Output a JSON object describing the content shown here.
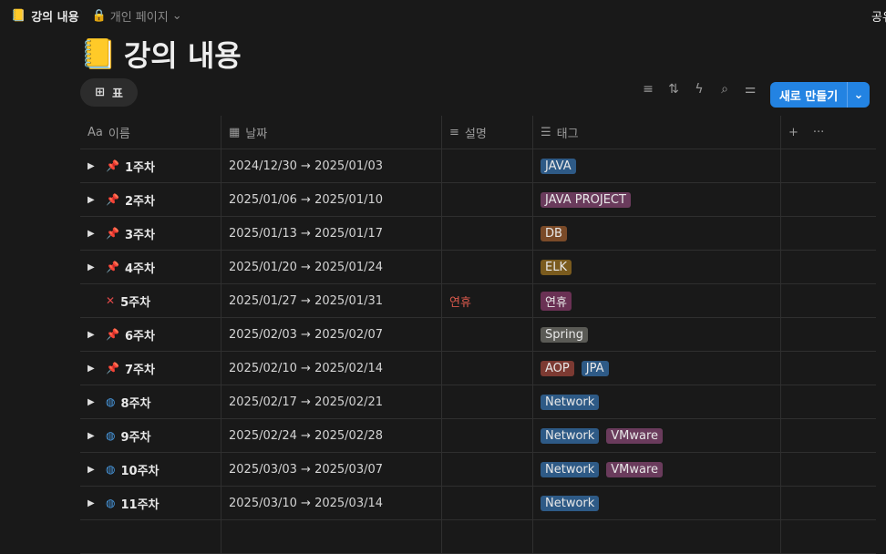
{
  "topbar": {
    "page_title": "강의 내용",
    "privacy": "개인 페이지",
    "share": "공유"
  },
  "page": {
    "title": "강의 내용",
    "emoji": "📒"
  },
  "view": {
    "tab": "표"
  },
  "toolbar": {
    "new_label": "새로 만들기"
  },
  "columns": [
    "이름",
    "날짜",
    "설명",
    "태그"
  ],
  "tag_colors": {
    "JAVA": "#2e5a86",
    "JAVA PROJECT": "#6a3b5c",
    "DB": "#7a4a28",
    "ELK": "#7a5b1e",
    "연휴": "#6a3154",
    "Spring": "#5a5a55",
    "AOP": "#7c3a32",
    "JPA": "#2e5a86",
    "Network": "#2e5a86",
    "VMware": "#6a3b5c"
  },
  "rows": [
    {
      "icon": "pin",
      "name": "1주차",
      "date": "2024/12/30 → 2025/01/03",
      "desc": "",
      "tags": [
        "JAVA"
      ]
    },
    {
      "icon": "pin",
      "name": "2주차",
      "date": "2025/01/06 → 2025/01/10",
      "desc": "",
      "tags": [
        "JAVA PROJECT"
      ]
    },
    {
      "icon": "pin",
      "name": "3주차",
      "date": "2025/01/13 → 2025/01/17",
      "desc": "",
      "tags": [
        "DB"
      ]
    },
    {
      "icon": "pin",
      "name": "4주차",
      "date": "2025/01/20 → 2025/01/24",
      "desc": "",
      "tags": [
        "ELK"
      ]
    },
    {
      "icon": "cross",
      "name": "5주차",
      "date": "2025/01/27 → 2025/01/31",
      "desc": "연휴",
      "tags": [
        "연휴"
      ]
    },
    {
      "icon": "pin",
      "name": "6주차",
      "date": "2025/02/03 → 2025/02/07",
      "desc": "",
      "tags": [
        "Spring"
      ]
    },
    {
      "icon": "pin",
      "name": "7주차",
      "date": "2025/02/10 → 2025/02/14",
      "desc": "",
      "tags": [
        "AOP",
        "JPA"
      ]
    },
    {
      "icon": "globe",
      "name": "8주차",
      "date": "2025/02/17 → 2025/02/21",
      "desc": "",
      "tags": [
        "Network"
      ]
    },
    {
      "icon": "globe",
      "name": "9주차",
      "date": "2025/02/24 → 2025/02/28",
      "desc": "",
      "tags": [
        "Network",
        "VMware"
      ]
    },
    {
      "icon": "globe",
      "name": "10주차",
      "date": "2025/03/03 → 2025/03/07",
      "desc": "",
      "tags": [
        "Network",
        "VMware"
      ]
    },
    {
      "icon": "globe",
      "name": "11주차",
      "date": "2025/03/10 → 2025/03/14",
      "desc": "",
      "tags": [
        "Network"
      ]
    }
  ]
}
